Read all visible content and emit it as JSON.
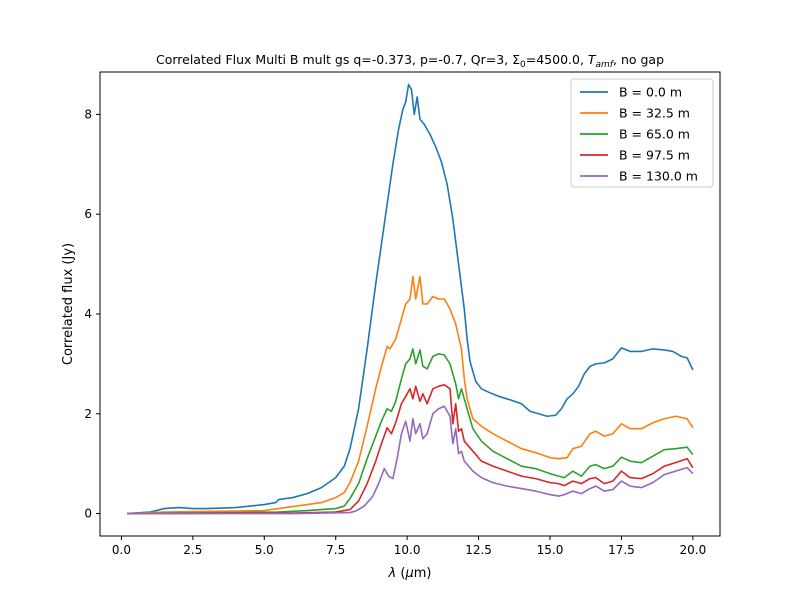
{
  "chart_data": {
    "type": "line",
    "title_parts": [
      "Correlated Flux Multi B mult gs q=-0.373, p=-0.7, Qr=3, Σ",
      "0",
      "=4500.0, ",
      "T",
      "amf",
      ", no gap"
    ],
    "xlabel_parts": [
      "λ",
      " (",
      "μ",
      "m)"
    ],
    "ylabel": "Correlated flux (Jy)",
    "xlim": [
      -0.75,
      20.95
    ],
    "ylim": [
      -0.45,
      8.85
    ],
    "xticks": [
      0.0,
      2.5,
      5.0,
      7.5,
      10.0,
      12.5,
      15.0,
      17.5,
      20.0
    ],
    "xtick_labels": [
      "0.0",
      "2.5",
      "5.0",
      "7.5",
      "10.0",
      "12.5",
      "15.0",
      "17.5",
      "20.0"
    ],
    "yticks": [
      0,
      2,
      4,
      6,
      8
    ],
    "ytick_labels": [
      "0",
      "2",
      "4",
      "6",
      "8"
    ],
    "grid": false,
    "legend_position": "top-right",
    "series": [
      {
        "name": "B = 0.0 m",
        "color": "#1f77b4",
        "x": [
          0.2,
          1.0,
          1.5,
          2.0,
          2.5,
          3.0,
          4.0,
          5.0,
          5.4,
          5.5,
          6.0,
          6.5,
          7.0,
          7.5,
          7.8,
          8.0,
          8.3,
          8.6,
          8.9,
          9.2,
          9.5,
          9.7,
          9.85,
          9.95,
          10.05,
          10.15,
          10.25,
          10.35,
          10.45,
          10.6,
          10.8,
          11.0,
          11.2,
          11.4,
          11.6,
          11.8,
          12.0,
          12.1,
          12.2,
          12.4,
          12.6,
          12.9,
          13.2,
          13.6,
          14.0,
          14.3,
          14.6,
          14.9,
          15.2,
          15.4,
          15.6,
          15.8,
          16.0,
          16.2,
          16.4,
          16.6,
          16.9,
          17.2,
          17.5,
          17.8,
          18.2,
          18.6,
          19.0,
          19.3,
          19.6,
          19.8,
          20.0
        ],
        "y": [
          0.0,
          0.03,
          0.1,
          0.12,
          0.1,
          0.1,
          0.12,
          0.18,
          0.22,
          0.28,
          0.32,
          0.4,
          0.52,
          0.72,
          0.95,
          1.3,
          2.1,
          3.3,
          4.6,
          5.8,
          7.0,
          7.7,
          8.1,
          8.25,
          8.6,
          8.5,
          8.0,
          8.35,
          7.9,
          7.8,
          7.6,
          7.35,
          7.05,
          6.6,
          5.9,
          5.0,
          4.1,
          3.5,
          3.05,
          2.65,
          2.5,
          2.42,
          2.35,
          2.28,
          2.2,
          2.05,
          2.0,
          1.95,
          1.97,
          2.1,
          2.3,
          2.4,
          2.55,
          2.8,
          2.95,
          3.0,
          3.02,
          3.1,
          3.32,
          3.25,
          3.25,
          3.3,
          3.28,
          3.25,
          3.15,
          3.12,
          2.88
        ]
      },
      {
        "name": "B = 32.5 m",
        "color": "#ff7f0e",
        "x": [
          0.2,
          1.5,
          2.5,
          4.0,
          5.0,
          5.5,
          6.0,
          7.0,
          7.5,
          7.8,
          8.0,
          8.3,
          8.6,
          8.9,
          9.1,
          9.3,
          9.4,
          9.6,
          9.8,
          9.95,
          10.1,
          10.2,
          10.3,
          10.45,
          10.55,
          10.7,
          10.9,
          11.1,
          11.3,
          11.5,
          11.7,
          11.9,
          12.0,
          12.1,
          12.3,
          12.6,
          13.0,
          13.5,
          14.0,
          14.5,
          15.0,
          15.3,
          15.6,
          15.8,
          16.1,
          16.4,
          16.6,
          16.9,
          17.2,
          17.5,
          17.8,
          18.2,
          18.6,
          19.0,
          19.4,
          19.8,
          20.0
        ],
        "y": [
          0.0,
          0.03,
          0.04,
          0.05,
          0.06,
          0.1,
          0.14,
          0.22,
          0.32,
          0.42,
          0.62,
          1.05,
          1.75,
          2.5,
          2.95,
          3.35,
          3.3,
          3.5,
          3.9,
          4.2,
          4.3,
          4.75,
          4.3,
          4.75,
          4.2,
          4.2,
          4.35,
          4.3,
          4.3,
          4.1,
          3.8,
          3.3,
          2.7,
          2.3,
          1.9,
          1.75,
          1.6,
          1.45,
          1.3,
          1.22,
          1.12,
          1.1,
          1.12,
          1.3,
          1.35,
          1.6,
          1.65,
          1.55,
          1.6,
          1.8,
          1.7,
          1.7,
          1.82,
          1.9,
          1.95,
          1.9,
          1.72
        ]
      },
      {
        "name": "B = 65.0 m",
        "color": "#2ca02c",
        "x": [
          0.2,
          2.0,
          4.0,
          5.5,
          6.5,
          7.5,
          7.8,
          8.0,
          8.3,
          8.6,
          8.9,
          9.1,
          9.3,
          9.45,
          9.6,
          9.8,
          9.95,
          10.1,
          10.2,
          10.3,
          10.45,
          10.55,
          10.7,
          10.9,
          11.1,
          11.3,
          11.5,
          11.7,
          11.8,
          11.9,
          12.0,
          12.3,
          12.6,
          13.0,
          13.5,
          14.0,
          14.5,
          15.0,
          15.3,
          15.5,
          15.8,
          16.1,
          16.4,
          16.6,
          16.9,
          17.2,
          17.5,
          17.8,
          18.2,
          18.6,
          19.0,
          19.4,
          19.8,
          20.0
        ],
        "y": [
          0.0,
          0.01,
          0.02,
          0.03,
          0.06,
          0.1,
          0.15,
          0.3,
          0.6,
          1.1,
          1.55,
          1.85,
          2.1,
          2.05,
          2.25,
          2.7,
          3.0,
          3.1,
          3.3,
          3.0,
          3.28,
          2.95,
          2.9,
          3.15,
          3.2,
          3.18,
          3.0,
          2.6,
          2.3,
          2.5,
          2.3,
          1.7,
          1.45,
          1.25,
          1.1,
          0.95,
          0.9,
          0.8,
          0.75,
          0.72,
          0.85,
          0.75,
          0.95,
          0.98,
          0.9,
          0.95,
          1.13,
          1.05,
          1.02,
          1.15,
          1.28,
          1.3,
          1.33,
          1.18
        ]
      },
      {
        "name": "B = 97.5 m",
        "color": "#d62728",
        "x": [
          0.2,
          2.0,
          4.0,
          6.0,
          7.5,
          8.0,
          8.3,
          8.6,
          8.9,
          9.1,
          9.3,
          9.45,
          9.6,
          9.8,
          9.95,
          10.1,
          10.2,
          10.3,
          10.45,
          10.55,
          10.7,
          10.9,
          11.1,
          11.3,
          11.5,
          11.6,
          11.7,
          11.8,
          11.9,
          12.0,
          12.3,
          12.6,
          13.0,
          13.5,
          14.0,
          14.5,
          15.0,
          15.3,
          15.5,
          15.8,
          16.1,
          16.4,
          16.6,
          16.9,
          17.2,
          17.5,
          17.8,
          18.2,
          18.6,
          19.0,
          19.4,
          19.8,
          20.0
        ],
        "y": [
          0.0,
          0.0,
          0.01,
          0.01,
          0.03,
          0.08,
          0.25,
          0.6,
          1.05,
          1.4,
          1.72,
          1.6,
          1.82,
          2.2,
          2.35,
          2.5,
          2.3,
          2.55,
          2.25,
          2.4,
          2.2,
          2.5,
          2.55,
          2.58,
          2.5,
          1.8,
          2.2,
          1.65,
          1.7,
          1.45,
          1.25,
          1.05,
          0.95,
          0.85,
          0.75,
          0.7,
          0.62,
          0.6,
          0.56,
          0.65,
          0.6,
          0.7,
          0.72,
          0.6,
          0.65,
          0.85,
          0.72,
          0.7,
          0.8,
          0.95,
          1.02,
          1.1,
          0.92
        ]
      },
      {
        "name": "B = 130.0 m",
        "color": "#9467bd",
        "x": [
          0.2,
          2.0,
          4.0,
          6.0,
          8.0,
          8.2,
          8.5,
          8.8,
          9.0,
          9.2,
          9.35,
          9.5,
          9.65,
          9.8,
          9.95,
          10.1,
          10.2,
          10.3,
          10.45,
          10.55,
          10.7,
          10.9,
          11.1,
          11.3,
          11.5,
          11.6,
          11.7,
          11.8,
          11.9,
          12.0,
          12.3,
          12.6,
          13.0,
          13.5,
          14.0,
          14.5,
          15.0,
          15.3,
          15.5,
          15.8,
          16.1,
          16.4,
          16.6,
          16.9,
          17.2,
          17.5,
          17.8,
          18.2,
          18.6,
          19.0,
          19.4,
          19.8,
          20.0
        ],
        "y": [
          0.0,
          0.0,
          0.0,
          0.0,
          0.02,
          0.05,
          0.15,
          0.35,
          0.6,
          0.9,
          0.75,
          0.7,
          1.1,
          1.6,
          1.85,
          1.45,
          1.9,
          1.6,
          1.8,
          1.5,
          1.6,
          2.0,
          2.1,
          2.15,
          1.95,
          1.4,
          1.7,
          1.2,
          1.25,
          1.05,
          0.85,
          0.72,
          0.62,
          0.55,
          0.5,
          0.45,
          0.38,
          0.35,
          0.38,
          0.45,
          0.4,
          0.5,
          0.55,
          0.45,
          0.48,
          0.65,
          0.55,
          0.52,
          0.62,
          0.78,
          0.85,
          0.92,
          0.8
        ]
      }
    ]
  }
}
